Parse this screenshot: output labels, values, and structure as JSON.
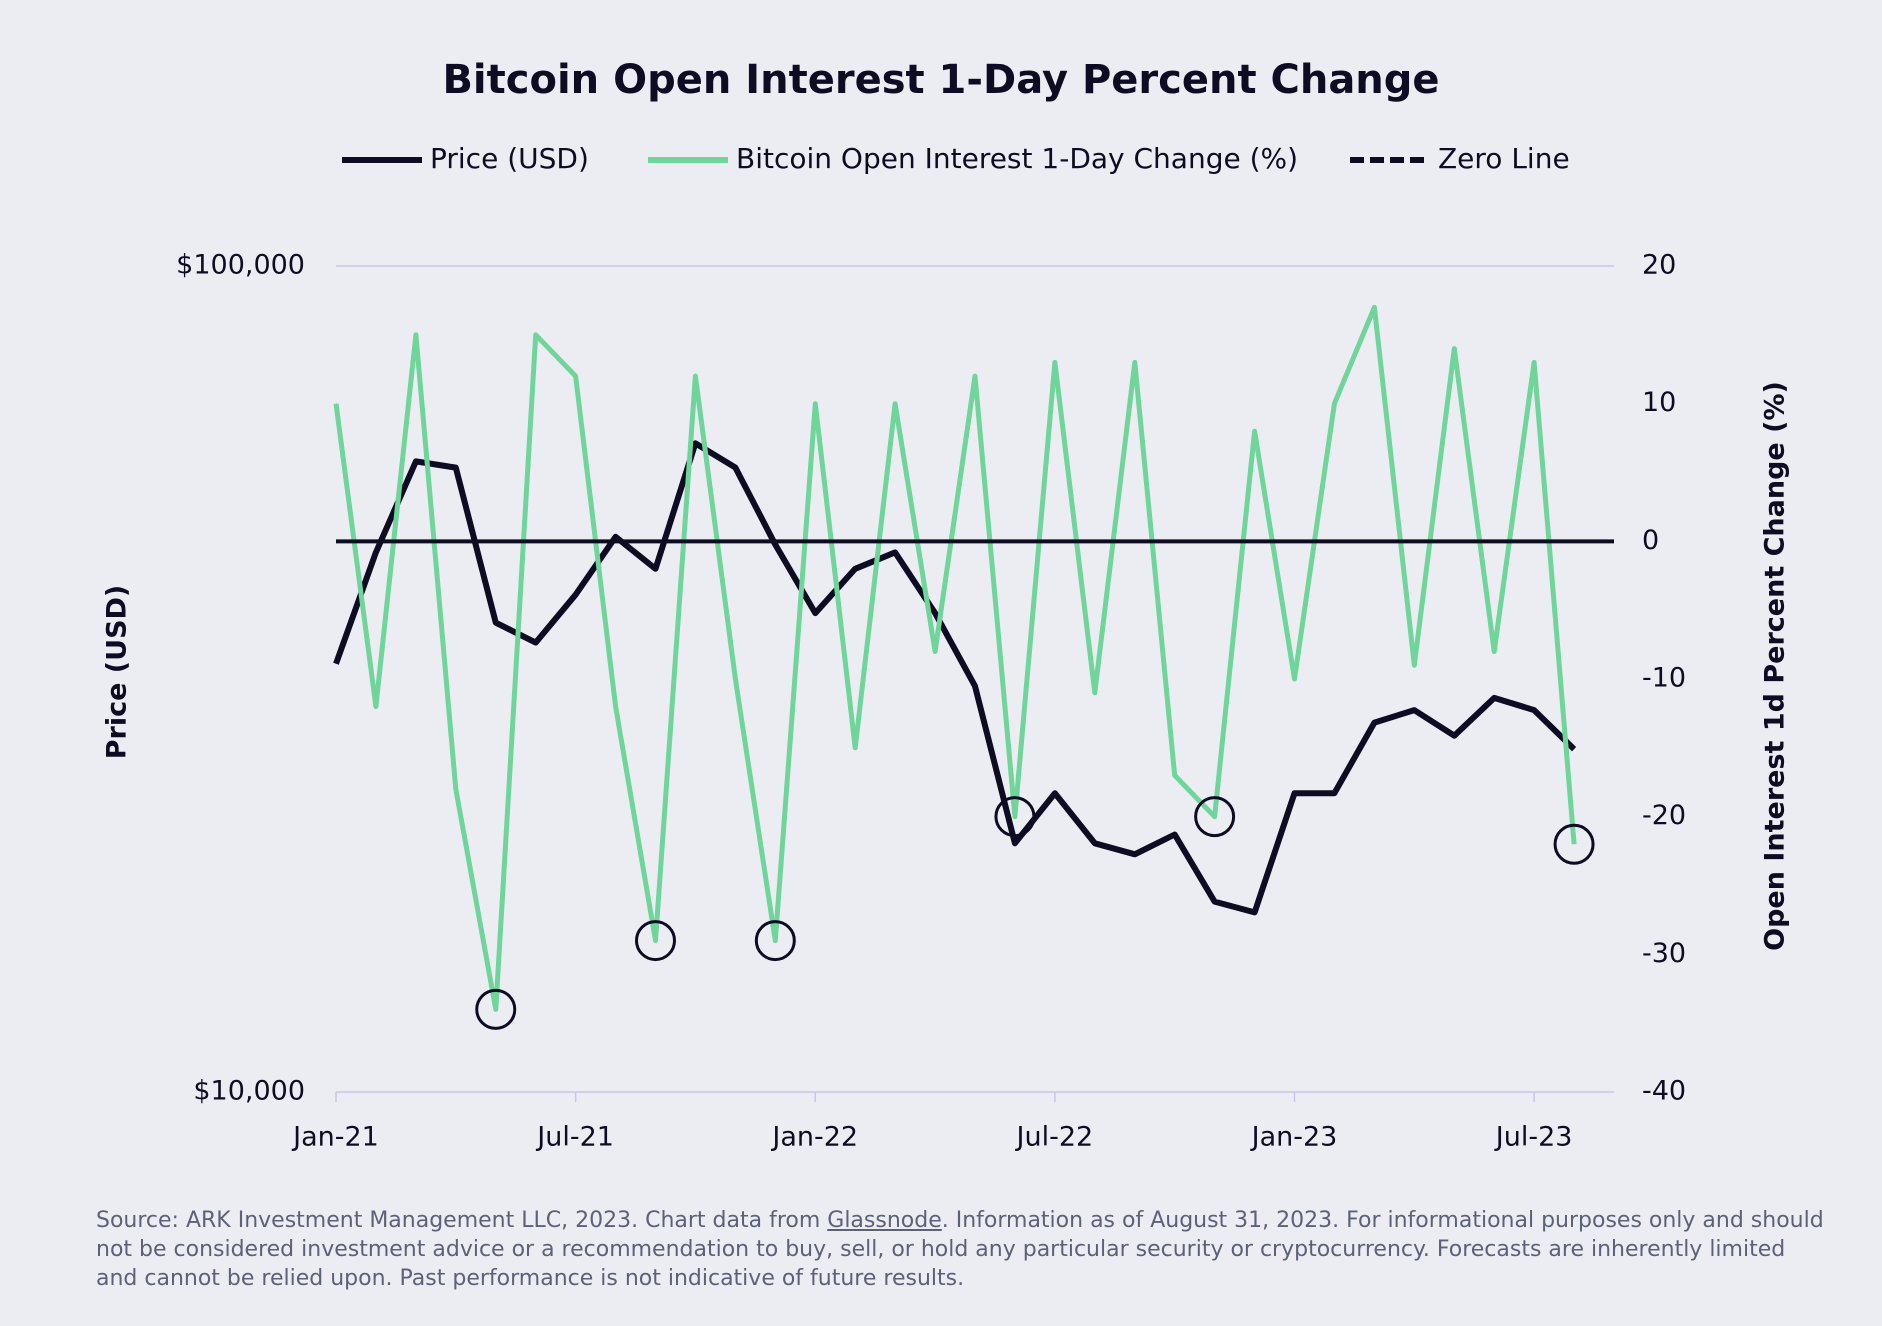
{
  "chart_data": {
    "type": "line",
    "title": "Bitcoin Open Interest 1-Day Percent Change",
    "x": [
      "2021-01",
      "2021-02",
      "2021-03",
      "2021-04",
      "2021-05",
      "2021-06",
      "2021-07",
      "2021-08",
      "2021-09",
      "2021-10",
      "2021-11",
      "2021-12",
      "2022-01",
      "2022-02",
      "2022-03",
      "2022-04",
      "2022-05",
      "2022-06",
      "2022-07",
      "2022-08",
      "2022-09",
      "2022-10",
      "2022-11",
      "2022-12",
      "2023-01",
      "2023-02",
      "2023-03",
      "2023-04",
      "2023-05",
      "2023-06",
      "2023-07",
      "2023-08"
    ],
    "xticks": [
      {
        "value": "2021-01",
        "label": "Jan-21"
      },
      {
        "value": "2021-07",
        "label": "Jul-21"
      },
      {
        "value": "2022-01",
        "label": "Jan-22"
      },
      {
        "value": "2022-07",
        "label": "Jul-22"
      },
      {
        "value": "2023-01",
        "label": "Jan-23"
      },
      {
        "value": "2023-07",
        "label": "Jul-23"
      }
    ],
    "series": [
      {
        "name": "Price (USD)",
        "color": "#0d0c22",
        "axis": "y",
        "values": [
          33000,
          45000,
          58000,
          57000,
          37000,
          35000,
          40000,
          47000,
          43000,
          61000,
          57000,
          46000,
          38000,
          43000,
          45000,
          38000,
          31000,
          20000,
          23000,
          20000,
          19400,
          20500,
          17000,
          16500,
          23000,
          23000,
          28000,
          29000,
          27000,
          30000,
          29000,
          26000
        ]
      },
      {
        "name": "Bitcoin Open Interest 1-Day Change (%)",
        "color": "#6fd59a",
        "axis": "y2",
        "values": [
          10,
          -12,
          15,
          -18,
          -34,
          15,
          12,
          -12,
          -29,
          12,
          -10,
          -29,
          10,
          -15,
          10,
          -8,
          12,
          -20,
          13,
          -11,
          13,
          -17,
          -20,
          8,
          -10,
          10,
          17,
          -9,
          14,
          -8,
          13,
          -22
        ]
      }
    ],
    "zero_line": {
      "name": "Zero Line",
      "color": "#0d0c22",
      "value": 0,
      "axis": "y2"
    },
    "circled": {
      "series": 1,
      "indices": [
        4,
        8,
        11,
        17,
        22,
        31
      ]
    },
    "ylabel": "Price (USD)",
    "y2label": "Open Interest 1d Percent Change (%)",
    "yscale": "log",
    "ylim": [
      10000,
      100000
    ],
    "yticks": [
      {
        "value": 10000,
        "label": "$10,000"
      },
      {
        "value": 100000,
        "label": "$100,000"
      }
    ],
    "y2lim": [
      -40,
      20
    ],
    "y2ticks": [
      -40,
      -30,
      -20,
      -10,
      0,
      10,
      20
    ],
    "grid": true
  },
  "source": {
    "before": "Source: ARK Investment Management LLC, 2023. Chart data from ",
    "link": "Glassnode",
    "after": ". Information as of August 31, 2023. For informational purposes only and should not be considered investment advice or a recommendation to buy, sell, or hold any particular security or cryptocurrency. Forecasts are inherently limited and cannot be relied upon. Past performance is not indicative of future results."
  }
}
